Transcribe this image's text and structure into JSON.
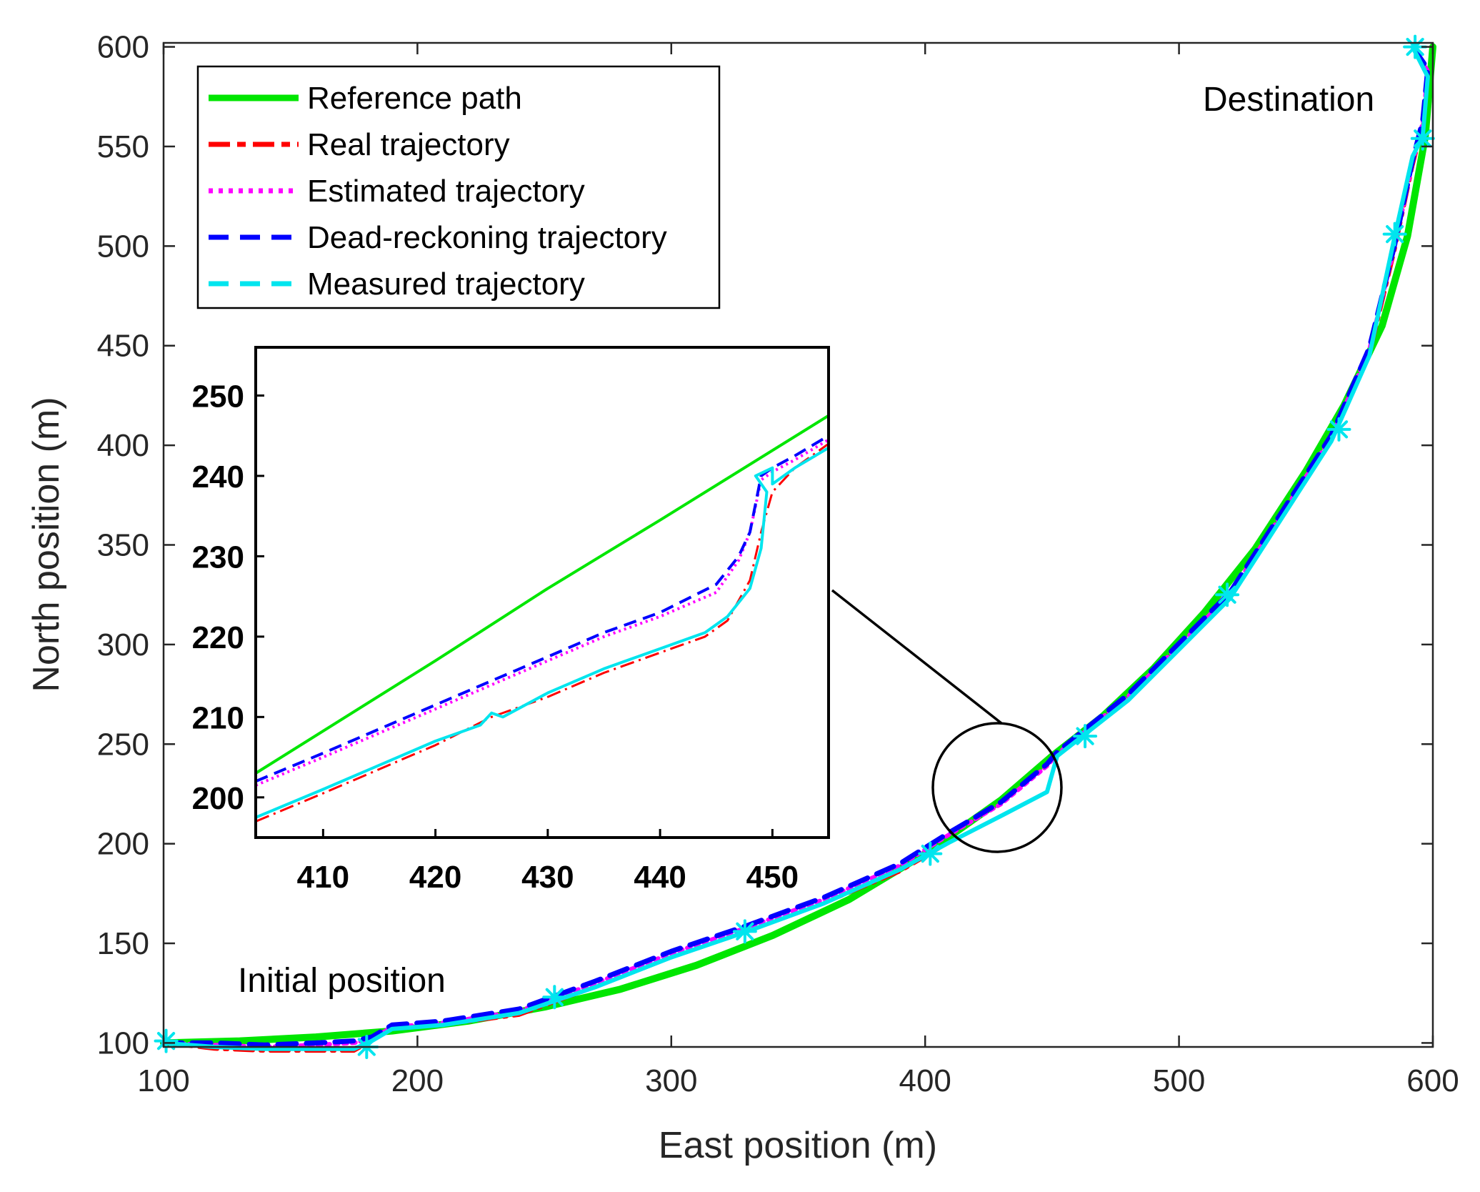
{
  "chart_data": {
    "type": "line",
    "title": "",
    "xlabel": "East position (m)",
    "ylabel": "North position (m)",
    "xlim": [
      100,
      600
    ],
    "ylim": [
      98,
      602
    ],
    "xticks": [
      "100",
      "200",
      "300",
      "400",
      "500",
      "600"
    ],
    "yticks": [
      "100",
      "150",
      "200",
      "250",
      "300",
      "350",
      "400",
      "450",
      "500",
      "550",
      "600"
    ],
    "grid": false,
    "legend_position": "top-left",
    "colors": {
      "reference": "#00e600",
      "real": "#ff0000",
      "estimated": "#ff00ff",
      "dead_reckoning": "#0000ff",
      "measured": "#00e5ee"
    },
    "series": [
      {
        "name": "Reference path",
        "x": [
          100,
          130,
          160,
          190,
          220,
          250,
          280,
          310,
          340,
          370,
          400,
          430,
          450,
          470,
          490,
          510,
          530,
          550,
          565,
          580,
          590,
          597,
          600
        ],
        "y": [
          100,
          101,
          103,
          106,
          111,
          118,
          127,
          139,
          154,
          172,
          195,
          222,
          244,
          264,
          288,
          316,
          348,
          387,
          420,
          460,
          505,
          555,
          600
        ]
      },
      {
        "name": "Real trajectory",
        "x": [
          100,
          120,
          140,
          160,
          175,
          182,
          190,
          210,
          240,
          270,
          300,
          330,
          360,
          390,
          410,
          430,
          448,
          452,
          480,
          520,
          560,
          575,
          585,
          592,
          596,
          598,
          592
        ],
        "y": [
          100,
          97,
          96,
          96,
          96,
          101,
          107,
          109,
          114,
          128,
          143,
          156,
          170,
          186,
          201,
          214,
          226,
          244,
          272,
          323,
          402,
          445,
          498,
          540,
          560,
          585,
          600
        ]
      },
      {
        "name": "Estimated trajectory",
        "x": [
          100,
          120,
          140,
          160,
          175,
          182,
          190,
          210,
          240,
          270,
          300,
          330,
          360,
          390,
          410,
          430,
          448,
          452,
          480,
          520,
          560,
          575,
          585,
          592,
          596,
          598,
          592
        ],
        "y": [
          100,
          99,
          98,
          99,
          100,
          102,
          108,
          110,
          116,
          130,
          145,
          158,
          172,
          189,
          205,
          220,
          239,
          245,
          274,
          325,
          404,
          448,
          500,
          542,
          562,
          588,
          600
        ]
      },
      {
        "name": "Dead-reckoning trajectory",
        "x": [
          100,
          120,
          140,
          160,
          175,
          182,
          190,
          210,
          240,
          270,
          300,
          330,
          360,
          390,
          410,
          430,
          448,
          452,
          480,
          520,
          560,
          575,
          585,
          592,
          596,
          598,
          592
        ],
        "y": [
          100,
          100,
          99,
          100,
          101,
          103,
          109,
          111,
          117,
          131,
          146,
          159,
          173,
          190,
          206,
          221,
          240,
          246,
          275,
          326,
          405,
          449,
          501,
          543,
          563,
          589,
          600
        ]
      },
      {
        "name": "Measured trajectory",
        "x": [
          100,
          120,
          140,
          160,
          175,
          182,
          190,
          210,
          240,
          270,
          300,
          330,
          360,
          390,
          410,
          430,
          448,
          452,
          480,
          520,
          560,
          575,
          585,
          592,
          596,
          598,
          592
        ],
        "y": [
          100,
          98,
          97,
          97,
          97,
          101,
          107,
          109,
          115,
          128,
          143,
          156,
          170,
          187,
          201,
          214,
          226,
          244,
          272,
          323,
          402,
          445,
          505,
          545,
          555,
          585,
          600
        ]
      }
    ],
    "markers": {
      "series": "Measured trajectory",
      "symbol": "*",
      "x": [
        101,
        180,
        254,
        329,
        402,
        463,
        519,
        563,
        585,
        596,
        593
      ],
      "y": [
        101,
        98,
        123,
        156,
        195,
        254,
        325,
        408,
        506,
        554,
        600
      ]
    },
    "annotations": [
      {
        "text": "Destination",
        "x": 550,
        "y": 575
      },
      {
        "text": "Initial position",
        "x": 130,
        "y": 126
      }
    ],
    "zoom_circle": {
      "cx": 429,
      "cy": 226,
      "r_x": 25
    },
    "inset": {
      "xlim": [
        404,
        455
      ],
      "ylim": [
        195,
        256
      ],
      "xticks": [
        "410",
        "420",
        "430",
        "440",
        "450"
      ],
      "yticks": [
        "200",
        "210",
        "220",
        "230",
        "240",
        "250"
      ],
      "series": [
        {
          "name": "Reference path",
          "x": [
            404,
            420,
            430,
            440,
            455
          ],
          "y": [
            203,
            217,
            226,
            234.5,
            247.5
          ]
        },
        {
          "name": "Real trajectory",
          "x": [
            404,
            410,
            420,
            425,
            430,
            435,
            440,
            444,
            446,
            448,
            449,
            450,
            452,
            455
          ],
          "y": [
            197,
            200.5,
            206.5,
            210,
            212.5,
            215.5,
            218,
            220,
            222,
            227,
            233,
            238,
            241,
            244
          ]
        },
        {
          "name": "Estimated trajectory",
          "x": [
            404,
            410,
            420,
            425,
            430,
            435,
            440,
            445,
            447,
            448,
            449,
            450,
            452,
            455
          ],
          "y": [
            201.5,
            205,
            211,
            214,
            217,
            220,
            222.5,
            225.5,
            229.5,
            233,
            239.5,
            240.5,
            242,
            244.5
          ]
        },
        {
          "name": "Dead-reckoning trajectory",
          "x": [
            404,
            410,
            420,
            425,
            430,
            435,
            440,
            445,
            447,
            448,
            449,
            450,
            452,
            455
          ],
          "y": [
            202,
            205.5,
            211.5,
            214.5,
            217.5,
            220.5,
            223,
            226.5,
            230,
            233,
            240,
            241,
            242.5,
            245
          ]
        },
        {
          "name": "Measured trajectory",
          "x": [
            404,
            410,
            420,
            424,
            425,
            426,
            430,
            435,
            440,
            444,
            446,
            448,
            449,
            449.5,
            448.5,
            450,
            450,
            452,
            455
          ],
          "y": [
            197.5,
            201,
            207,
            209,
            210.5,
            210,
            213,
            216,
            218.5,
            220.5,
            222.5,
            226,
            231,
            238,
            240,
            241,
            239,
            241,
            243.5
          ]
        }
      ]
    }
  }
}
